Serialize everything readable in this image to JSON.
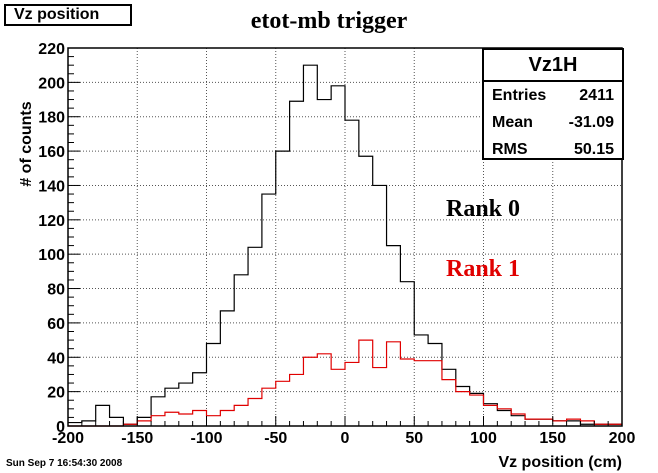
{
  "window_label": "Vz position",
  "chart_data": {
    "type": "histogram",
    "title": "etot-mb trigger",
    "xlabel": "Vz position (cm)",
    "ylabel": "# of counts",
    "xlim": [
      -200,
      200
    ],
    "ylim": [
      0,
      220
    ],
    "xticks": [
      -200,
      -150,
      -100,
      -50,
      0,
      50,
      100,
      150,
      200
    ],
    "yticks": [
      0,
      20,
      40,
      60,
      80,
      100,
      120,
      140,
      160,
      180,
      200,
      220
    ],
    "grid": true,
    "bin_edges_start": -200,
    "bin_width": 10,
    "series": [
      {
        "name": "Rank 0",
        "color": "#000000",
        "values": [
          2,
          3,
          12,
          5,
          1,
          5,
          17,
          22,
          25,
          31,
          48,
          67,
          88,
          104,
          135,
          160,
          189,
          210,
          190,
          198,
          178,
          157,
          140,
          105,
          84,
          53,
          48,
          33,
          23,
          19,
          13,
          9,
          6,
          4,
          4,
          3,
          3,
          1,
          1,
          1
        ]
      },
      {
        "name": "Rank 1",
        "color": "#e00000",
        "values": [
          0,
          0,
          0,
          0,
          1,
          3,
          6,
          8,
          7,
          9,
          6,
          9,
          12,
          16,
          22,
          26,
          30,
          40,
          42,
          33,
          37,
          50,
          34,
          49,
          39,
          38,
          38,
          27,
          20,
          18,
          12,
          10,
          7,
          4,
          4,
          3,
          4,
          3,
          1,
          1
        ]
      }
    ],
    "annotations": [
      "Rank 0",
      "Rank 1"
    ]
  },
  "stats": {
    "name": "Vz1H",
    "entries_label": "Entries",
    "entries": "2411",
    "mean_label": "Mean",
    "mean": "-31.09",
    "rms_label": "RMS",
    "rms": "50.15"
  },
  "timestamp": "Sun Sep  7 16:54:30 2008"
}
